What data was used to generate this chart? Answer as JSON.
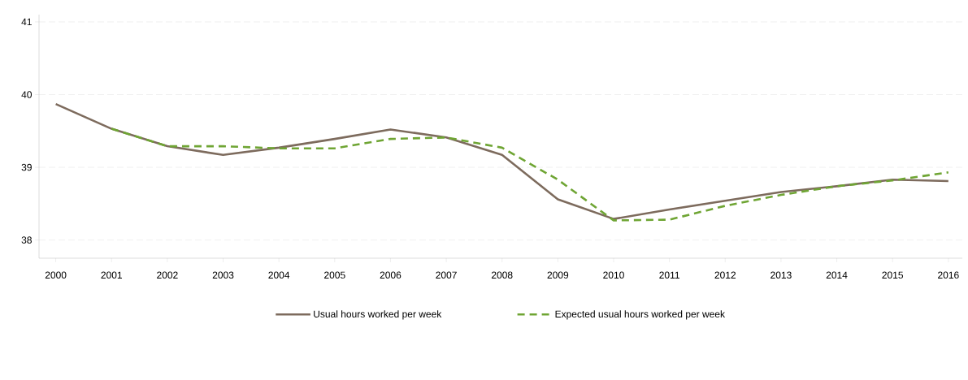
{
  "chart_data": {
    "type": "line",
    "categories": [
      "2000",
      "2001",
      "2002",
      "2003",
      "2004",
      "2005",
      "2006",
      "2007",
      "2008",
      "2009",
      "2010",
      "2011",
      "2012",
      "2013",
      "2014",
      "2015",
      "2016"
    ],
    "series": [
      {
        "name": "Usual hours worked per week",
        "color": "#7d6b5d",
        "line_style": "solid",
        "values": [
          39.87,
          39.53,
          39.29,
          39.17,
          39.27,
          39.39,
          39.52,
          39.41,
          39.17,
          38.56,
          38.29,
          38.42,
          38.54,
          38.66,
          38.74,
          38.83,
          38.81
        ]
      },
      {
        "name": "Expected usual hours worked per week",
        "color": "#6fa534",
        "line_style": "dashed",
        "values": [
          null,
          39.53,
          39.29,
          39.29,
          39.26,
          39.26,
          39.39,
          39.41,
          39.27,
          38.83,
          38.27,
          38.28,
          38.47,
          38.62,
          38.74,
          38.82,
          38.93
        ]
      }
    ],
    "ylim": [
      37.75,
      41.1
    ],
    "yticks": [
      38,
      39,
      40,
      41
    ],
    "grid": "y",
    "legend": "bottom",
    "marker": "none"
  }
}
